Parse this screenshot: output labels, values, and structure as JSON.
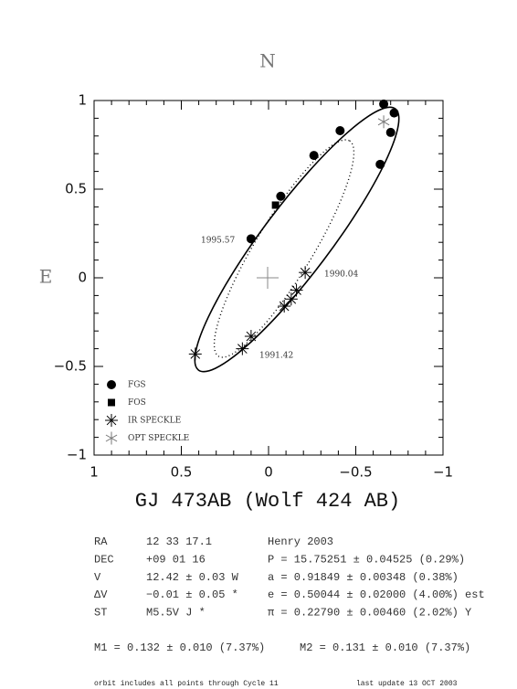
{
  "chart_data": {
    "type": "scatter",
    "title": "GJ 473AB (Wolf 424 AB)",
    "north_label": "N",
    "east_label": "E",
    "xlim": [
      1,
      -1
    ],
    "ylim": [
      -1,
      1
    ],
    "xticks": [
      1,
      0.5,
      0,
      {
        "value": -0.5,
        "label": "−0.5"
      },
      {
        "value": -1,
        "label": "−1"
      }
    ],
    "yticks": [
      {
        "value": -1,
        "label": "−1"
      },
      {
        "value": -0.5,
        "label": "−0.5"
      },
      0,
      0.5,
      1
    ],
    "series": [
      {
        "name": "FGS",
        "color": "#000000",
        "marker": "circle",
        "x": [
          -0.66,
          -0.72,
          -0.7,
          -0.64,
          -0.41,
          -0.26,
          -0.07,
          0.1
        ],
        "y": [
          0.98,
          0.93,
          0.82,
          0.64,
          0.83,
          0.69,
          0.46,
          0.22
        ]
      },
      {
        "name": "FOS",
        "color": "#000000",
        "marker": "square",
        "x": [
          -0.04
        ],
        "y": [
          0.41
        ]
      },
      {
        "name": "IR SPECKLE",
        "color": "#000000",
        "marker": "asterisk",
        "x": [
          -0.21,
          -0.16,
          -0.13,
          -0.09,
          0.1,
          0.15,
          0.42
        ],
        "y": [
          0.03,
          -0.07,
          -0.12,
          -0.16,
          -0.33,
          -0.4,
          -0.43
        ]
      },
      {
        "name": "OPT SPECKLE",
        "color": "#777777",
        "marker": "star",
        "x": [
          -0.66
        ],
        "y": [
          0.88
        ]
      }
    ],
    "annotations": [
      "1995.57",
      "1990.04",
      "1991.42"
    ]
  },
  "info": {
    "rows": [
      [
        "RA",
        "12 33 17.1",
        "Henry 2003"
      ],
      [
        "DEC",
        "+09 01 16",
        "P = 15.75251 ± 0.04525 (0.29%)"
      ],
      [
        "V",
        "12.42 ± 0.03 W",
        "a = 0.91849 ± 0.00348 (0.38%)"
      ],
      [
        "ΔV",
        "−0.01 ± 0.05 *",
        "e = 0.50044 ± 0.02000 (4.00%) est"
      ],
      [
        "ST",
        "M5.5V J *",
        "π = 0.22790 ± 0.00460 (2.02%) Y"
      ]
    ],
    "masses": [
      "M1 = 0.132 ± 0.010 (7.37%)",
      "M2 = 0.131 ± 0.010 (7.37%)"
    ],
    "footer": [
      "orbit includes all points through Cycle 11",
      "last update 13 OCT 2003"
    ]
  }
}
